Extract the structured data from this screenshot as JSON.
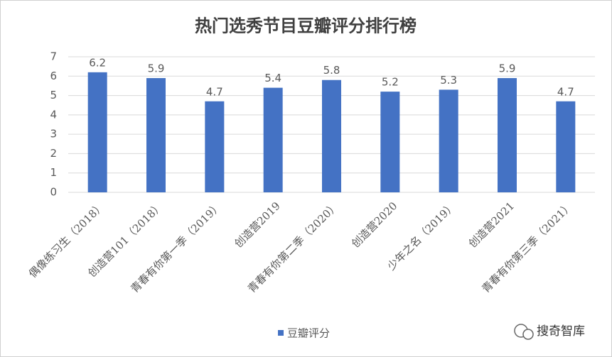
{
  "chart_data": {
    "type": "bar",
    "title": "热门选秀节目豆瓣评分排行榜",
    "categories": [
      "偶像练习生（2018）",
      "创造营101（2018）",
      "青春有你第一季（2019）",
      "创造营2019",
      "青春有你第二季（2020）",
      "创造营2020",
      "少年之名（2019）",
      "创造营2021",
      "青春有你第三季（2021）"
    ],
    "series": [
      {
        "name": "豆瓣评分",
        "color": "#4472c4",
        "values": [
          6.2,
          5.9,
          4.7,
          5.4,
          5.8,
          5.2,
          5.3,
          5.9,
          4.7
        ]
      }
    ],
    "ylim": [
      0,
      7
    ],
    "yticks": [
      0,
      1,
      2,
      3,
      4,
      5,
      6,
      7
    ],
    "grid": true,
    "legend": "bottom",
    "data_labels": true
  },
  "watermark": "搜奇智库"
}
